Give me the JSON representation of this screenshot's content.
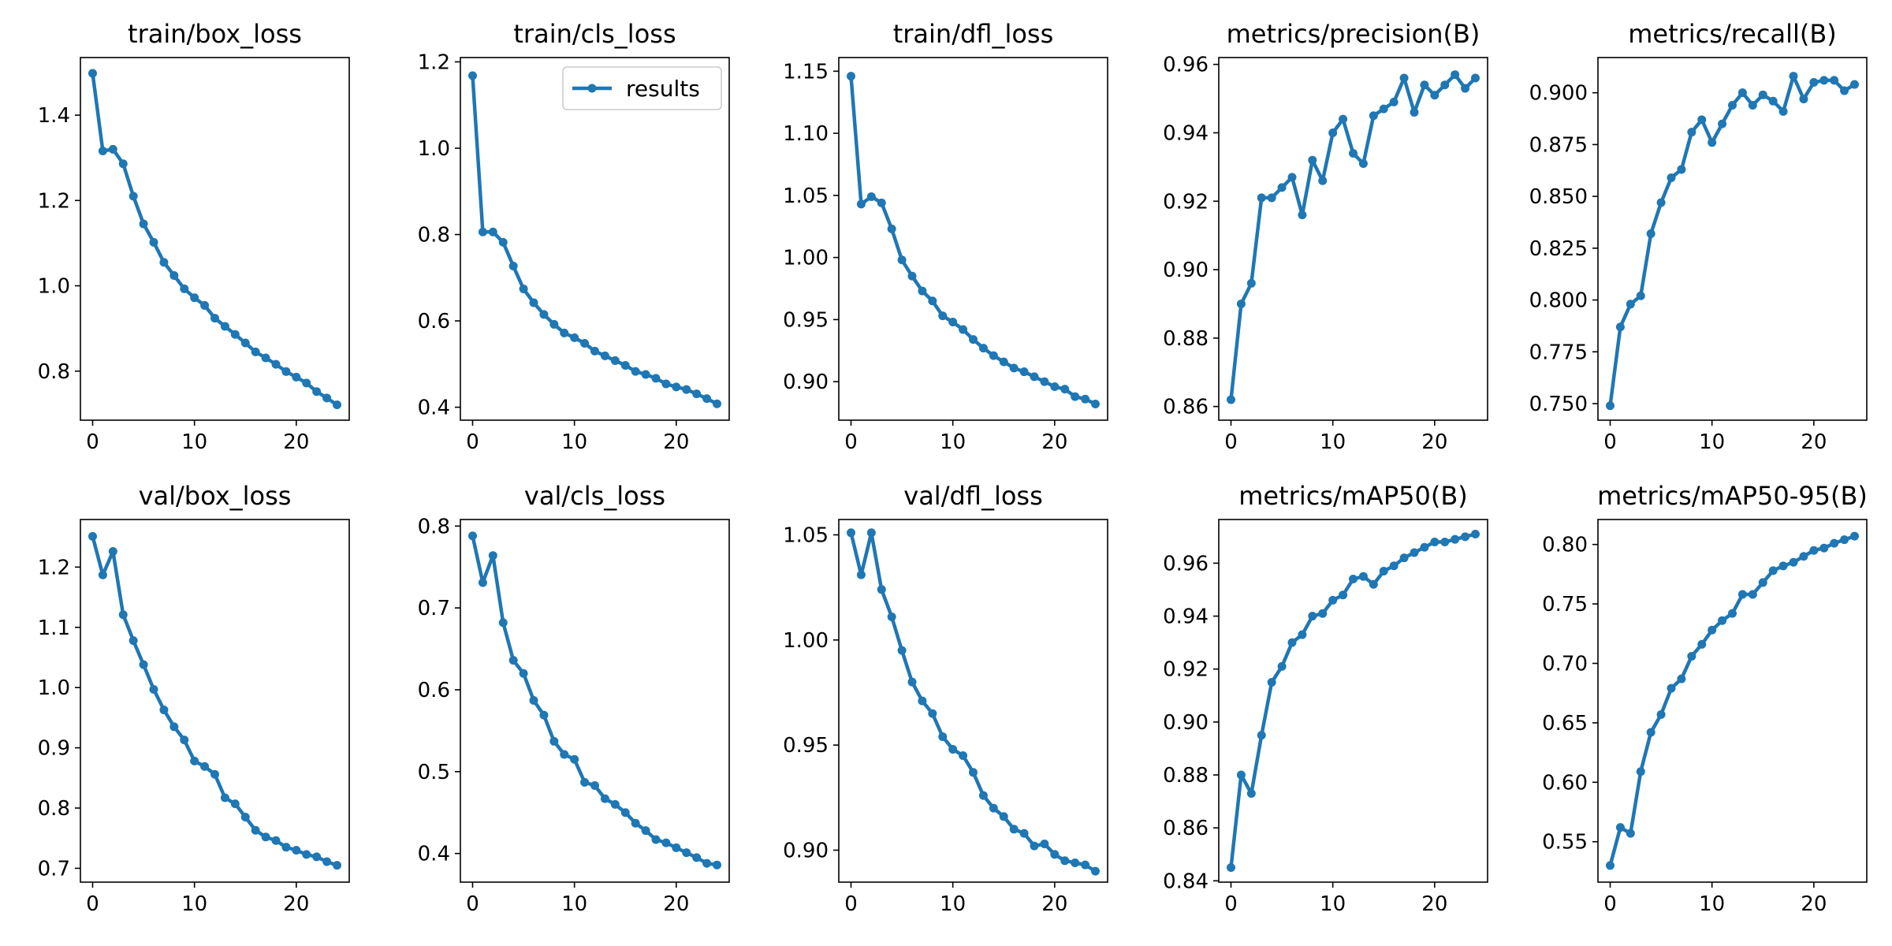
{
  "style": {
    "line_color": "#1f77b4",
    "frame_color": "#000000",
    "background": "#ffffff"
  },
  "legend": {
    "label": "results",
    "placement": "upper-right",
    "panel": 1
  },
  "chart_data": [
    {
      "type": "line",
      "title": "train/box_loss",
      "xlim": [
        -1.2,
        25.2
      ],
      "ylim": [
        0.685,
        1.535
      ],
      "x_ticks": [
        0,
        10,
        20
      ],
      "y_ticks": [
        {
          "v": 0.8,
          "label": "0.8"
        },
        {
          "v": 1.0,
          "label": "1.0"
        },
        {
          "v": 1.2,
          "label": "1.2"
        },
        {
          "v": 1.4,
          "label": "1.4"
        }
      ],
      "series": [
        {
          "name": "results",
          "x": [
            0,
            1,
            2,
            3,
            4,
            5,
            6,
            7,
            8,
            9,
            10,
            11,
            12,
            13,
            14,
            15,
            16,
            17,
            18,
            19,
            20,
            21,
            22,
            23,
            24
          ],
          "values": [
            1.498,
            1.316,
            1.32,
            1.286,
            1.21,
            1.145,
            1.102,
            1.055,
            1.024,
            0.993,
            0.972,
            0.954,
            0.924,
            0.905,
            0.886,
            0.866,
            0.845,
            0.831,
            0.816,
            0.799,
            0.786,
            0.772,
            0.752,
            0.737,
            0.721
          ]
        }
      ]
    },
    {
      "type": "line",
      "title": "train/cls_loss",
      "xlim": [
        -1.2,
        25.2
      ],
      "ylim": [
        0.37,
        1.21
      ],
      "x_ticks": [
        0,
        10,
        20
      ],
      "y_ticks": [
        {
          "v": 0.4,
          "label": "0.4"
        },
        {
          "v": 0.6,
          "label": "0.6"
        },
        {
          "v": 0.8,
          "label": "0.8"
        },
        {
          "v": 1.0,
          "label": "1.0"
        },
        {
          "v": 1.2,
          "label": "1.2"
        }
      ],
      "series": [
        {
          "name": "results",
          "x": [
            0,
            1,
            2,
            3,
            4,
            5,
            6,
            7,
            8,
            9,
            10,
            11,
            12,
            13,
            14,
            15,
            16,
            17,
            18,
            19,
            20,
            21,
            22,
            23,
            24
          ],
          "values": [
            1.168,
            0.806,
            0.806,
            0.782,
            0.727,
            0.674,
            0.642,
            0.615,
            0.592,
            0.572,
            0.561,
            0.548,
            0.53,
            0.519,
            0.508,
            0.497,
            0.483,
            0.476,
            0.467,
            0.454,
            0.447,
            0.441,
            0.431,
            0.42,
            0.408
          ]
        }
      ]
    },
    {
      "type": "line",
      "title": "train/dfl_loss",
      "xlim": [
        -1.2,
        25.2
      ],
      "ylim": [
        0.869,
        1.161
      ],
      "x_ticks": [
        0,
        10,
        20
      ],
      "y_ticks": [
        {
          "v": 0.9,
          "label": "0.90"
        },
        {
          "v": 0.95,
          "label": "0.95"
        },
        {
          "v": 1.0,
          "label": "1.00"
        },
        {
          "v": 1.05,
          "label": "1.05"
        },
        {
          "v": 1.1,
          "label": "1.10"
        },
        {
          "v": 1.15,
          "label": "1.15"
        }
      ],
      "series": [
        {
          "name": "results",
          "x": [
            0,
            1,
            2,
            3,
            4,
            5,
            6,
            7,
            8,
            9,
            10,
            11,
            12,
            13,
            14,
            15,
            16,
            17,
            18,
            19,
            20,
            21,
            22,
            23,
            24
          ],
          "values": [
            1.146,
            1.043,
            1.049,
            1.044,
            1.023,
            0.998,
            0.985,
            0.973,
            0.965,
            0.953,
            0.948,
            0.942,
            0.934,
            0.927,
            0.921,
            0.916,
            0.911,
            0.908,
            0.904,
            0.9,
            0.896,
            0.894,
            0.888,
            0.886,
            0.882
          ]
        }
      ]
    },
    {
      "type": "line",
      "title": "metrics/precision(B)",
      "xlim": [
        -1.2,
        25.2
      ],
      "ylim": [
        0.856,
        0.962
      ],
      "x_ticks": [
        0,
        10,
        20
      ],
      "y_ticks": [
        {
          "v": 0.86,
          "label": "0.86"
        },
        {
          "v": 0.88,
          "label": "0.88"
        },
        {
          "v": 0.9,
          "label": "0.90"
        },
        {
          "v": 0.92,
          "label": "0.92"
        },
        {
          "v": 0.94,
          "label": "0.94"
        },
        {
          "v": 0.96,
          "label": "0.96"
        }
      ],
      "series": [
        {
          "name": "results",
          "x": [
            0,
            1,
            2,
            3,
            4,
            5,
            6,
            7,
            8,
            9,
            10,
            11,
            12,
            13,
            14,
            15,
            16,
            17,
            18,
            19,
            20,
            21,
            22,
            23,
            24
          ],
          "values": [
            0.862,
            0.89,
            0.896,
            0.921,
            0.921,
            0.924,
            0.927,
            0.916,
            0.932,
            0.926,
            0.94,
            0.944,
            0.934,
            0.931,
            0.945,
            0.947,
            0.949,
            0.956,
            0.946,
            0.954,
            0.951,
            0.954,
            0.957,
            0.953,
            0.956
          ]
        }
      ]
    },
    {
      "type": "line",
      "title": "metrics/recall(B)",
      "xlim": [
        -1.2,
        25.2
      ],
      "ylim": [
        0.742,
        0.917
      ],
      "x_ticks": [
        0,
        10,
        20
      ],
      "y_ticks": [
        {
          "v": 0.75,
          "label": "0.750"
        },
        {
          "v": 0.775,
          "label": "0.775"
        },
        {
          "v": 0.8,
          "label": "0.800"
        },
        {
          "v": 0.825,
          "label": "0.825"
        },
        {
          "v": 0.85,
          "label": "0.850"
        },
        {
          "v": 0.875,
          "label": "0.875"
        },
        {
          "v": 0.9,
          "label": "0.900"
        }
      ],
      "series": [
        {
          "name": "results",
          "x": [
            0,
            1,
            2,
            3,
            4,
            5,
            6,
            7,
            8,
            9,
            10,
            11,
            12,
            13,
            14,
            15,
            16,
            17,
            18,
            19,
            20,
            21,
            22,
            23,
            24
          ],
          "values": [
            0.749,
            0.787,
            0.798,
            0.802,
            0.832,
            0.847,
            0.859,
            0.863,
            0.881,
            0.887,
            0.876,
            0.885,
            0.894,
            0.9,
            0.894,
            0.899,
            0.896,
            0.891,
            0.908,
            0.897,
            0.905,
            0.906,
            0.906,
            0.901,
            0.904
          ]
        }
      ]
    },
    {
      "type": "line",
      "title": "val/box_loss",
      "xlim": [
        -1.2,
        25.2
      ],
      "ylim": [
        0.677,
        1.279
      ],
      "x_ticks": [
        0,
        10,
        20
      ],
      "y_ticks": [
        {
          "v": 0.7,
          "label": "0.7"
        },
        {
          "v": 0.8,
          "label": "0.8"
        },
        {
          "v": 0.9,
          "label": "0.9"
        },
        {
          "v": 1.0,
          "label": "1.0"
        },
        {
          "v": 1.1,
          "label": "1.1"
        },
        {
          "v": 1.2,
          "label": "1.2"
        }
      ],
      "series": [
        {
          "name": "results",
          "x": [
            0,
            1,
            2,
            3,
            4,
            5,
            6,
            7,
            8,
            9,
            10,
            11,
            12,
            13,
            14,
            15,
            16,
            17,
            18,
            19,
            20,
            21,
            22,
            23,
            24
          ],
          "values": [
            1.251,
            1.187,
            1.226,
            1.121,
            1.078,
            1.038,
            0.997,
            0.963,
            0.935,
            0.913,
            0.878,
            0.869,
            0.856,
            0.817,
            0.807,
            0.785,
            0.763,
            0.752,
            0.746,
            0.735,
            0.73,
            0.723,
            0.719,
            0.711,
            0.705
          ]
        }
      ]
    },
    {
      "type": "line",
      "title": "val/cls_loss",
      "xlim": [
        -1.2,
        25.2
      ],
      "ylim": [
        0.365,
        0.808
      ],
      "x_ticks": [
        0,
        10,
        20
      ],
      "y_ticks": [
        {
          "v": 0.4,
          "label": "0.4"
        },
        {
          "v": 0.5,
          "label": "0.5"
        },
        {
          "v": 0.6,
          "label": "0.6"
        },
        {
          "v": 0.7,
          "label": "0.7"
        },
        {
          "v": 0.8,
          "label": "0.8"
        }
      ],
      "series": [
        {
          "name": "results",
          "x": [
            0,
            1,
            2,
            3,
            4,
            5,
            6,
            7,
            8,
            9,
            10,
            11,
            12,
            13,
            14,
            15,
            16,
            17,
            18,
            19,
            20,
            21,
            22,
            23,
            24
          ],
          "values": [
            0.788,
            0.731,
            0.764,
            0.682,
            0.636,
            0.62,
            0.587,
            0.569,
            0.537,
            0.521,
            0.515,
            0.487,
            0.483,
            0.467,
            0.46,
            0.45,
            0.437,
            0.428,
            0.417,
            0.413,
            0.407,
            0.401,
            0.395,
            0.388,
            0.386
          ]
        }
      ]
    },
    {
      "type": "line",
      "title": "val/dfl_loss",
      "xlim": [
        -1.2,
        25.2
      ],
      "ylim": [
        0.8848,
        1.0573
      ],
      "x_ticks": [
        0,
        10,
        20
      ],
      "y_ticks": [
        {
          "v": 0.9,
          "label": "0.90"
        },
        {
          "v": 0.95,
          "label": "0.95"
        },
        {
          "v": 1.0,
          "label": "1.00"
        },
        {
          "v": 1.05,
          "label": "1.05"
        }
      ],
      "series": [
        {
          "name": "results",
          "x": [
            0,
            1,
            2,
            3,
            4,
            5,
            6,
            7,
            8,
            9,
            10,
            11,
            12,
            13,
            14,
            15,
            16,
            17,
            18,
            19,
            20,
            21,
            22,
            23,
            24
          ],
          "values": [
            1.051,
            1.031,
            1.051,
            1.024,
            1.011,
            0.995,
            0.98,
            0.971,
            0.965,
            0.954,
            0.948,
            0.945,
            0.937,
            0.926,
            0.92,
            0.916,
            0.91,
            0.908,
            0.902,
            0.903,
            0.898,
            0.895,
            0.894,
            0.893,
            0.89
          ]
        }
      ]
    },
    {
      "type": "line",
      "title": "metrics/mAP50(B)",
      "xlim": [
        -1.2,
        25.2
      ],
      "ylim": [
        0.8395,
        0.9765
      ],
      "x_ticks": [
        0,
        10,
        20
      ],
      "y_ticks": [
        {
          "v": 0.84,
          "label": "0.84"
        },
        {
          "v": 0.86,
          "label": "0.86"
        },
        {
          "v": 0.88,
          "label": "0.88"
        },
        {
          "v": 0.9,
          "label": "0.90"
        },
        {
          "v": 0.92,
          "label": "0.92"
        },
        {
          "v": 0.94,
          "label": "0.94"
        },
        {
          "v": 0.96,
          "label": "0.96"
        }
      ],
      "series": [
        {
          "name": "results",
          "x": [
            0,
            1,
            2,
            3,
            4,
            5,
            6,
            7,
            8,
            9,
            10,
            11,
            12,
            13,
            14,
            15,
            16,
            17,
            18,
            19,
            20,
            21,
            22,
            23,
            24
          ],
          "values": [
            0.845,
            0.88,
            0.873,
            0.895,
            0.915,
            0.921,
            0.93,
            0.933,
            0.94,
            0.941,
            0.946,
            0.948,
            0.954,
            0.955,
            0.952,
            0.957,
            0.959,
            0.962,
            0.964,
            0.966,
            0.968,
            0.968,
            0.969,
            0.97,
            0.971
          ]
        }
      ]
    },
    {
      "type": "line",
      "title": "metrics/mAP50-95(B)",
      "xlim": [
        -1.2,
        25.2
      ],
      "ylim": [
        0.516,
        0.821
      ],
      "x_ticks": [
        0,
        10,
        20
      ],
      "y_ticks": [
        {
          "v": 0.55,
          "label": "0.55"
        },
        {
          "v": 0.6,
          "label": "0.60"
        },
        {
          "v": 0.65,
          "label": "0.65"
        },
        {
          "v": 0.7,
          "label": "0.70"
        },
        {
          "v": 0.75,
          "label": "0.75"
        },
        {
          "v": 0.8,
          "label": "0.80"
        }
      ],
      "series": [
        {
          "name": "results",
          "x": [
            0,
            1,
            2,
            3,
            4,
            5,
            6,
            7,
            8,
            9,
            10,
            11,
            12,
            13,
            14,
            15,
            16,
            17,
            18,
            19,
            20,
            21,
            22,
            23,
            24
          ],
          "values": [
            0.53,
            0.562,
            0.557,
            0.609,
            0.642,
            0.657,
            0.679,
            0.687,
            0.706,
            0.716,
            0.728,
            0.736,
            0.742,
            0.758,
            0.758,
            0.768,
            0.778,
            0.782,
            0.785,
            0.79,
            0.795,
            0.797,
            0.801,
            0.804,
            0.807
          ]
        }
      ]
    }
  ]
}
